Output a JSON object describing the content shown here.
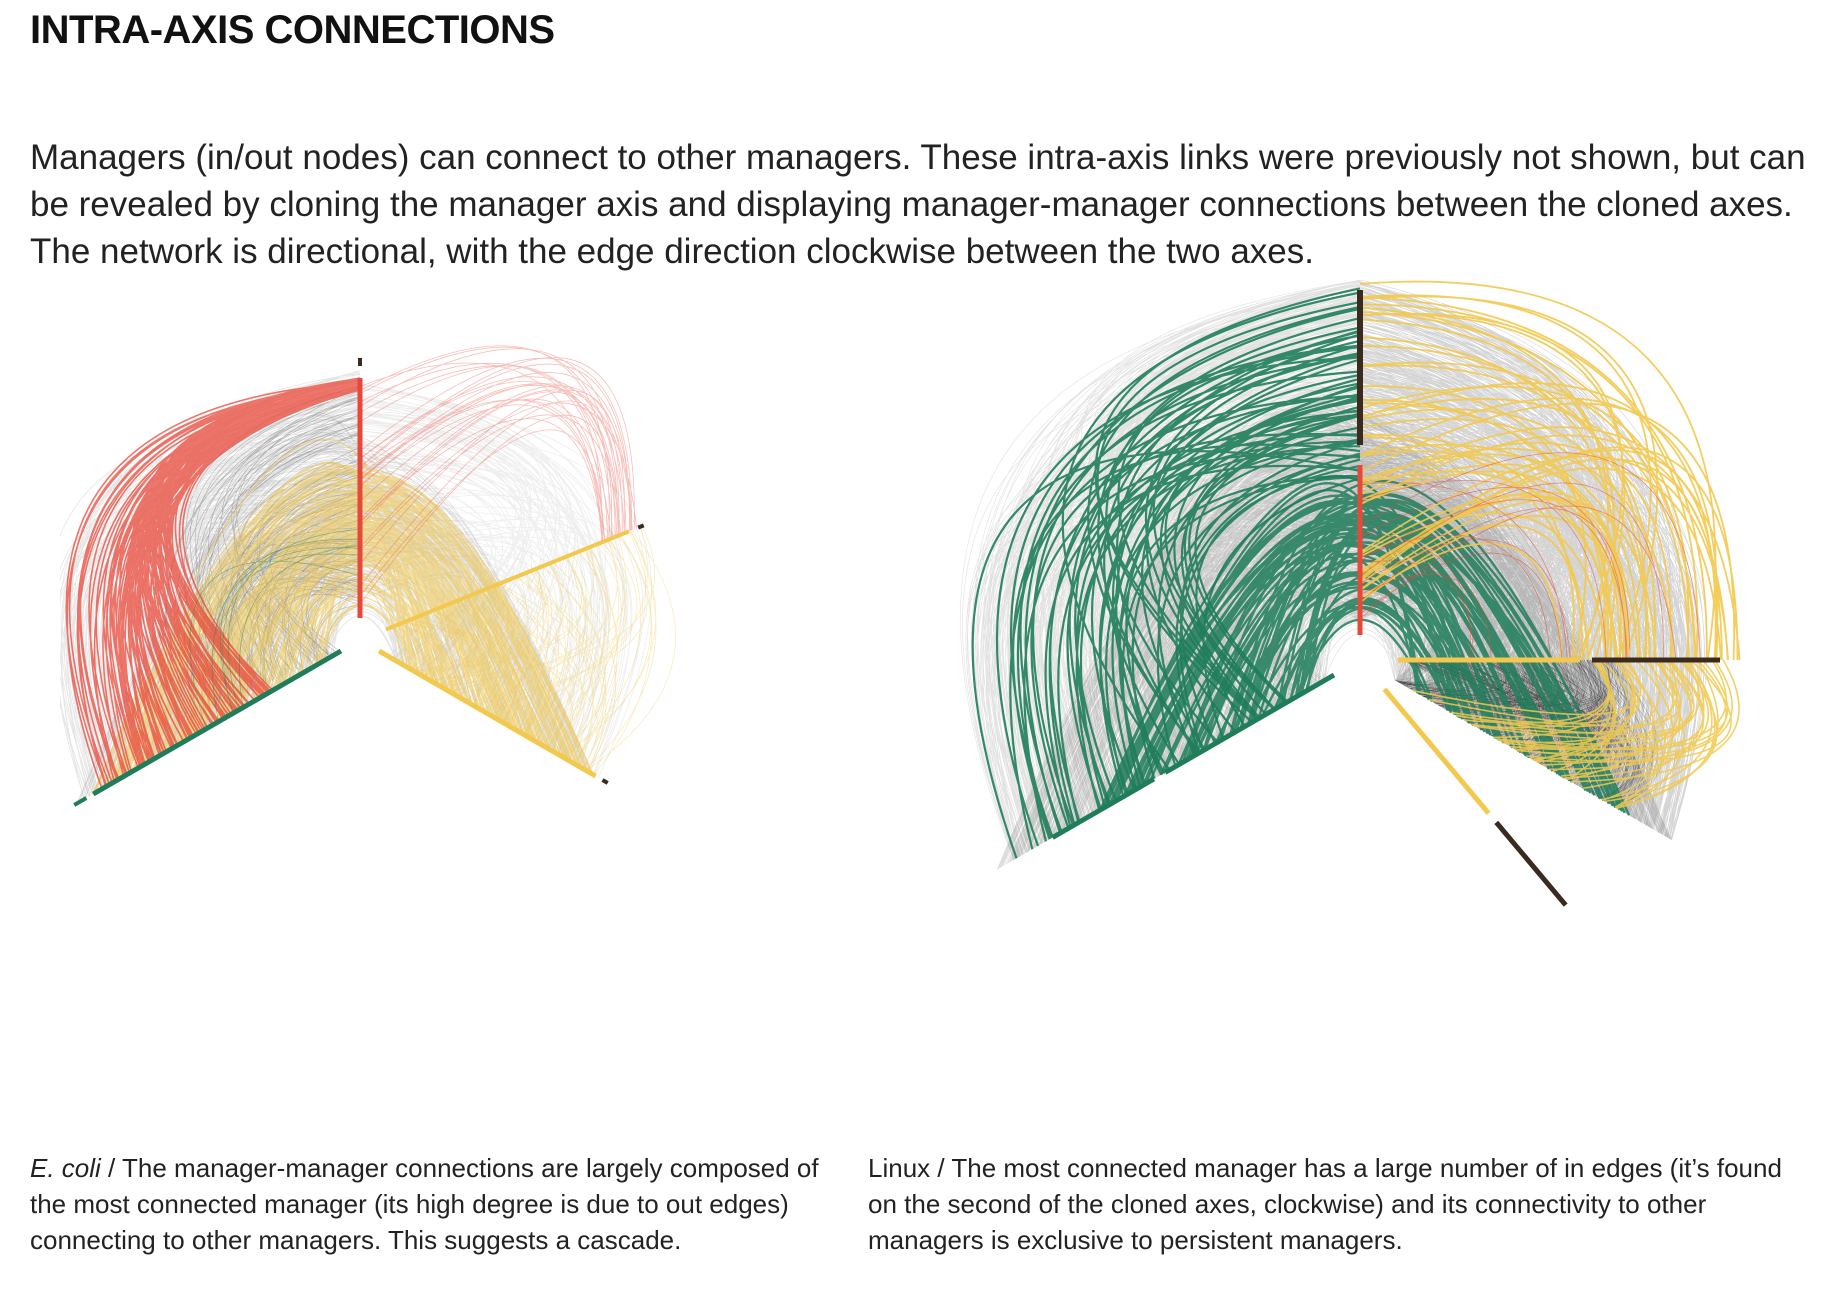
{
  "title": "INTRA-AXIS CONNECTIONS",
  "intro": "Managers (in/out nodes) can connect to other managers. These intra-axis links were previously not shown, but can be revealed by cloning the manager axis and displaying manager-manager connections between the cloned axes. The network is directional, with the edge direction clockwise between the two axes.",
  "captions": {
    "left": {
      "organism": "E. coli",
      "text": " / The manager-manager connections are largely composed of the most connected manager (its high degree is due to out edges) connecting to other managers. This suggests a cascade."
    },
    "right": {
      "organism": "Linux",
      "text": " / The most connected manager has a large number of in edges (it’s found on the second of the cloned axes, clockwise) and its connectivity to other managers is exclusive to persistent managers."
    }
  },
  "colors": {
    "red": "#e8483a",
    "green": "#1f7d5a",
    "yellow": "#f2c94c",
    "dark": "#3a2a20",
    "gray": "#777777",
    "black": "#111111"
  }
}
